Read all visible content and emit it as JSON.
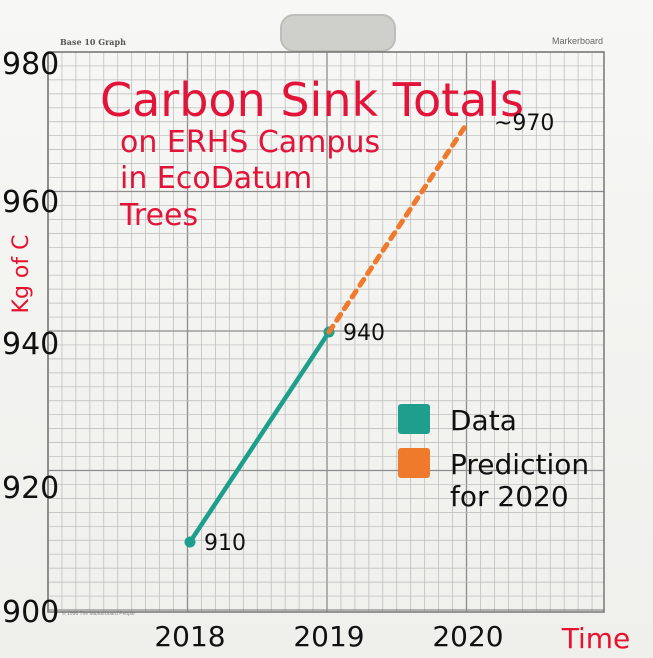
{
  "board": {
    "grid_label": "Base 10 Graph",
    "brand": "Markerboard",
    "copyright": "© 1996 The Markerboard People"
  },
  "title_lines": [
    "Carbon Sink Totals",
    "on ERHS Campus",
    "in EcoDatum",
    "Trees"
  ],
  "chart_data": {
    "type": "line",
    "title": "Carbon Sink Totals on ERHS Campus in EcoDatum Trees",
    "xlabel": "Time",
    "ylabel": "Kg of C",
    "x_ticks": [
      "2018",
      "2019",
      "2020"
    ],
    "y_ticks": [
      "900",
      "920",
      "940",
      "960",
      "980"
    ],
    "ylim": [
      900,
      980
    ],
    "series": [
      {
        "name": "Data",
        "color": "#1e9e8c",
        "style": "solid",
        "points": [
          {
            "x": 2018,
            "y": 910,
            "label": "910"
          },
          {
            "x": 2019,
            "y": 940,
            "label": "940"
          }
        ]
      },
      {
        "name": "Prediction for 2020",
        "color": "#f07a2c",
        "style": "dotted",
        "points": [
          {
            "x": 2019,
            "y": 940
          },
          {
            "x": 2020,
            "y": 970,
            "label": "~970"
          }
        ]
      }
    ],
    "legend": {
      "position": "right",
      "entries": [
        {
          "lines": [
            "Data"
          ],
          "color": "#1e9e8c"
        },
        {
          "lines": [
            "Prediction",
            "for 2020"
          ],
          "color": "#f07a2c"
        }
      ]
    },
    "grid": true
  }
}
